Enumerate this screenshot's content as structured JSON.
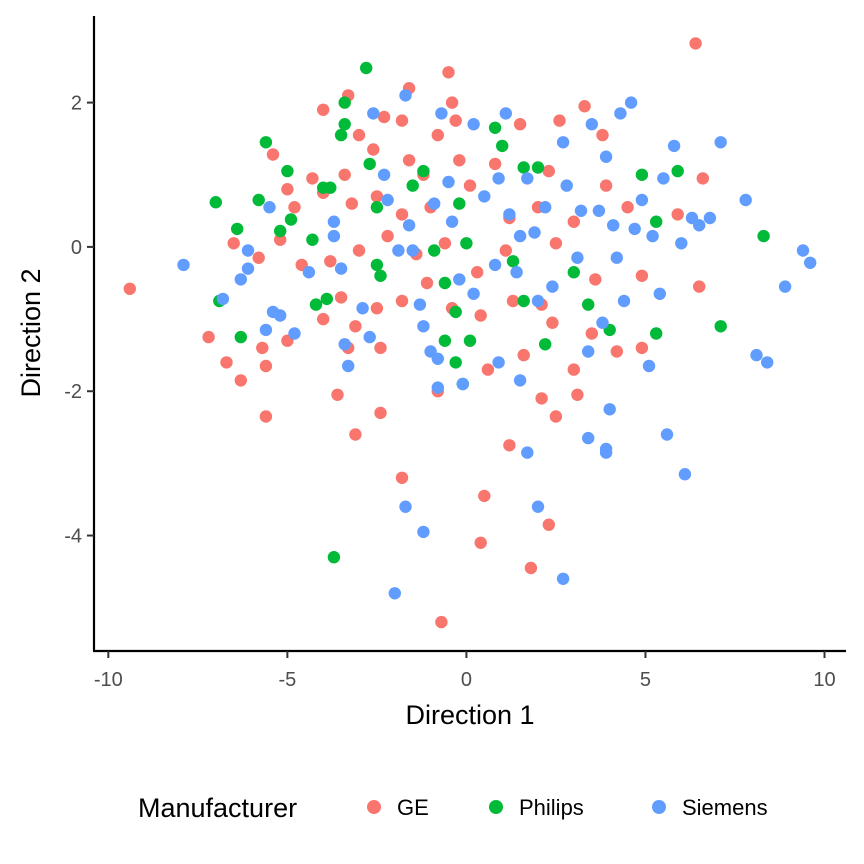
{
  "chart_data": {
    "type": "scatter",
    "title": "",
    "xlabel": "Direction 1",
    "ylabel": "Direction 2",
    "xlim": [
      -10.4,
      10.6
    ],
    "ylim": [
      -5.6,
      3.2
    ],
    "xticks": [
      -10,
      -5,
      0,
      5,
      10
    ],
    "xtick_labels": [
      "-10",
      "-5",
      "0",
      "5",
      "10"
    ],
    "yticks": [
      -4,
      -2,
      0,
      2
    ],
    "ytick_labels": [
      "-4",
      "-2",
      "0",
      "2"
    ],
    "grid": false,
    "legend": {
      "title": "Manufacturer",
      "position": "bottom"
    },
    "series": [
      {
        "name": "GE",
        "color": "#F8766D",
        "points": [
          [
            6.4,
            2.82
          ],
          [
            -9.4,
            -0.58
          ],
          [
            -0.5,
            2.42
          ],
          [
            -1.6,
            2.2
          ],
          [
            -3.3,
            2.1
          ],
          [
            -4.0,
            1.9
          ],
          [
            -0.4,
            2.0
          ],
          [
            -2.3,
            1.8
          ],
          [
            -3.0,
            1.55
          ],
          [
            -1.8,
            1.75
          ],
          [
            -0.8,
            1.55
          ],
          [
            -0.3,
            1.75
          ],
          [
            1.5,
            1.7
          ],
          [
            2.6,
            1.75
          ],
          [
            3.3,
            1.95
          ],
          [
            3.8,
            1.55
          ],
          [
            -5.4,
            1.28
          ],
          [
            -4.3,
            0.95
          ],
          [
            -3.4,
            1.0
          ],
          [
            -2.6,
            1.35
          ],
          [
            -1.6,
            1.2
          ],
          [
            -1.2,
            1.0
          ],
          [
            -0.2,
            1.2
          ],
          [
            0.8,
            1.15
          ],
          [
            2.3,
            1.05
          ],
          [
            3.9,
            0.85
          ],
          [
            6.6,
            0.95
          ],
          [
            -5.0,
            0.8
          ],
          [
            -4.8,
            0.55
          ],
          [
            -4.0,
            0.75
          ],
          [
            -3.2,
            0.6
          ],
          [
            -2.5,
            0.7
          ],
          [
            -1.8,
            0.45
          ],
          [
            -1.0,
            0.55
          ],
          [
            0.1,
            0.85
          ],
          [
            1.2,
            0.4
          ],
          [
            2.0,
            0.55
          ],
          [
            3.0,
            0.35
          ],
          [
            4.5,
            0.55
          ],
          [
            5.9,
            0.45
          ],
          [
            -6.5,
            0.05
          ],
          [
            -5.8,
            -0.15
          ],
          [
            -5.2,
            0.1
          ],
          [
            -4.6,
            -0.25
          ],
          [
            -3.8,
            -0.2
          ],
          [
            -3.0,
            -0.05
          ],
          [
            -2.2,
            0.15
          ],
          [
            -1.4,
            -0.1
          ],
          [
            -0.6,
            0.05
          ],
          [
            0.3,
            -0.35
          ],
          [
            1.1,
            -0.05
          ],
          [
            2.5,
            0.05
          ],
          [
            3.6,
            -0.45
          ],
          [
            4.9,
            -0.4
          ],
          [
            6.5,
            -0.55
          ],
          [
            -7.2,
            -1.25
          ],
          [
            -6.7,
            -1.6
          ],
          [
            -5.7,
            -1.4
          ],
          [
            -5.0,
            -1.3
          ],
          [
            -4.0,
            -1.0
          ],
          [
            -3.5,
            -0.7
          ],
          [
            -3.1,
            -1.1
          ],
          [
            -2.5,
            -0.85
          ],
          [
            -1.8,
            -0.75
          ],
          [
            -1.1,
            -0.5
          ],
          [
            -0.4,
            -0.85
          ],
          [
            0.4,
            -0.95
          ],
          [
            1.3,
            -0.75
          ],
          [
            2.1,
            -0.8
          ],
          [
            2.4,
            -1.05
          ],
          [
            3.5,
            -1.2
          ],
          [
            4.2,
            -1.45
          ],
          [
            -6.3,
            -1.85
          ],
          [
            -5.6,
            -1.65
          ],
          [
            -3.3,
            -1.4
          ],
          [
            -2.4,
            -1.4
          ],
          [
            -0.8,
            -2.0
          ],
          [
            0.6,
            -1.7
          ],
          [
            1.6,
            -1.5
          ],
          [
            3.0,
            -1.7
          ],
          [
            4.9,
            -1.4
          ],
          [
            -5.6,
            -2.35
          ],
          [
            -3.6,
            -2.05
          ],
          [
            -2.4,
            -2.3
          ],
          [
            -3.1,
            -2.6
          ],
          [
            2.1,
            -2.1
          ],
          [
            2.5,
            -2.35
          ],
          [
            3.1,
            -2.05
          ],
          [
            1.2,
            -2.75
          ],
          [
            -1.8,
            -3.2
          ],
          [
            0.5,
            -3.45
          ],
          [
            2.3,
            -3.85
          ],
          [
            0.4,
            -4.1
          ],
          [
            1.8,
            -4.45
          ],
          [
            -0.7,
            -5.2
          ]
        ]
      },
      {
        "name": "Philips",
        "color": "#00BA38",
        "points": [
          [
            -2.8,
            2.48
          ],
          [
            -3.4,
            2.0
          ],
          [
            -3.4,
            1.7
          ],
          [
            -3.5,
            1.55
          ],
          [
            -5.6,
            1.45
          ],
          [
            -5.0,
            1.05
          ],
          [
            -2.7,
            1.15
          ],
          [
            -1.2,
            1.05
          ],
          [
            0.8,
            1.65
          ],
          [
            1.0,
            1.4
          ],
          [
            -7.0,
            0.62
          ],
          [
            -5.8,
            0.65
          ],
          [
            -4.0,
            0.82
          ],
          [
            -3.8,
            0.82
          ],
          [
            -2.5,
            0.55
          ],
          [
            -1.5,
            0.85
          ],
          [
            -0.2,
            0.6
          ],
          [
            1.6,
            1.1
          ],
          [
            2.0,
            1.1
          ],
          [
            -6.4,
            0.25
          ],
          [
            -4.9,
            0.38
          ],
          [
            -5.2,
            0.22
          ],
          [
            -4.3,
            0.1
          ],
          [
            -2.5,
            -0.25
          ],
          [
            -2.4,
            -0.4
          ],
          [
            -0.9,
            -0.05
          ],
          [
            0.0,
            0.05
          ],
          [
            1.3,
            -0.2
          ],
          [
            3.0,
            -0.35
          ],
          [
            -6.9,
            -0.75
          ],
          [
            -4.2,
            -0.8
          ],
          [
            -3.9,
            -0.72
          ],
          [
            -0.6,
            -0.5
          ],
          [
            -0.3,
            -0.9
          ],
          [
            0.1,
            -1.3
          ],
          [
            1.6,
            -0.75
          ],
          [
            3.4,
            -0.8
          ],
          [
            -6.3,
            -1.25
          ],
          [
            -0.6,
            -1.3
          ],
          [
            2.2,
            -1.35
          ],
          [
            4.0,
            -1.15
          ],
          [
            5.3,
            -1.2
          ],
          [
            -0.3,
            -1.6
          ],
          [
            -0.1,
            -1.9
          ],
          [
            7.1,
            -1.1
          ],
          [
            8.3,
            0.15
          ],
          [
            5.9,
            1.05
          ],
          [
            4.9,
            1.0
          ],
          [
            5.3,
            0.35
          ],
          [
            -3.7,
            -4.3
          ]
        ]
      },
      {
        "name": "Siemens",
        "color": "#619CFF",
        "points": [
          [
            -7.9,
            -0.25
          ],
          [
            -6.8,
            -0.72
          ],
          [
            -6.3,
            -0.45
          ],
          [
            -6.1,
            -0.05
          ],
          [
            -6.1,
            -0.3
          ],
          [
            -5.5,
            0.55
          ],
          [
            -5.6,
            -1.15
          ],
          [
            -5.4,
            -0.9
          ],
          [
            -5.2,
            -0.95
          ],
          [
            -4.8,
            -1.2
          ],
          [
            -4.4,
            -0.35
          ],
          [
            -3.7,
            0.35
          ],
          [
            -3.5,
            -0.3
          ],
          [
            -3.4,
            -1.35
          ],
          [
            -3.3,
            -1.65
          ],
          [
            -2.9,
            -0.85
          ],
          [
            -2.7,
            -1.25
          ],
          [
            -2.6,
            1.85
          ],
          [
            -2.2,
            0.65
          ],
          [
            -1.7,
            2.1
          ],
          [
            -1.6,
            0.3
          ],
          [
            -1.5,
            -0.05
          ],
          [
            -1.3,
            -0.8
          ],
          [
            -1.2,
            -1.1
          ],
          [
            -1.0,
            -1.45
          ],
          [
            -0.8,
            -1.55
          ],
          [
            -0.8,
            -1.95
          ],
          [
            -0.7,
            1.85
          ],
          [
            -0.5,
            0.9
          ],
          [
            -0.4,
            0.35
          ],
          [
            -0.2,
            -0.45
          ],
          [
            -0.1,
            -1.9
          ],
          [
            0.2,
            -0.65
          ],
          [
            0.2,
            1.7
          ],
          [
            0.5,
            0.7
          ],
          [
            0.8,
            -0.25
          ],
          [
            0.9,
            -1.6
          ],
          [
            1.1,
            1.85
          ],
          [
            1.2,
            0.45
          ],
          [
            1.4,
            -0.35
          ],
          [
            1.5,
            -1.85
          ],
          [
            1.7,
            0.95
          ],
          [
            1.9,
            0.2
          ],
          [
            2.0,
            -0.75
          ],
          [
            2.2,
            0.55
          ],
          [
            2.4,
            -0.55
          ],
          [
            2.7,
            1.45
          ],
          [
            2.8,
            0.85
          ],
          [
            3.1,
            -0.15
          ],
          [
            3.2,
            0.5
          ],
          [
            3.4,
            -1.45
          ],
          [
            3.5,
            1.7
          ],
          [
            3.7,
            0.5
          ],
          [
            3.8,
            -1.05
          ],
          [
            3.9,
            1.25
          ],
          [
            4.1,
            0.3
          ],
          [
            4.2,
            -0.15
          ],
          [
            4.3,
            1.85
          ],
          [
            4.4,
            -0.75
          ],
          [
            4.6,
            2.0
          ],
          [
            4.7,
            0.25
          ],
          [
            4.9,
            0.65
          ],
          [
            5.1,
            -1.65
          ],
          [
            5.2,
            0.15
          ],
          [
            5.4,
            -0.65
          ],
          [
            5.5,
            0.95
          ],
          [
            5.8,
            1.4
          ],
          [
            6.0,
            0.05
          ],
          [
            6.3,
            0.4
          ],
          [
            6.5,
            0.3
          ],
          [
            6.8,
            0.4
          ],
          [
            7.1,
            1.45
          ],
          [
            7.8,
            0.65
          ],
          [
            8.1,
            -1.5
          ],
          [
            8.4,
            -1.6
          ],
          [
            8.9,
            -0.55
          ],
          [
            9.4,
            -0.05
          ],
          [
            9.6,
            -0.22
          ],
          [
            -1.9,
            -0.05
          ],
          [
            -1.7,
            -3.6
          ],
          [
            -2.0,
            -4.8
          ],
          [
            -1.2,
            -3.95
          ],
          [
            1.7,
            -2.85
          ],
          [
            2.0,
            -3.6
          ],
          [
            2.7,
            -4.6
          ],
          [
            3.4,
            -2.65
          ],
          [
            3.9,
            -2.8
          ],
          [
            3.9,
            -2.85
          ],
          [
            4.0,
            -2.25
          ],
          [
            5.6,
            -2.6
          ],
          [
            6.1,
            -3.15
          ],
          [
            0.9,
            0.95
          ],
          [
            -0.9,
            0.6
          ],
          [
            1.5,
            0.15
          ],
          [
            -2.3,
            1.0
          ],
          [
            -3.7,
            0.15
          ]
        ]
      }
    ]
  }
}
